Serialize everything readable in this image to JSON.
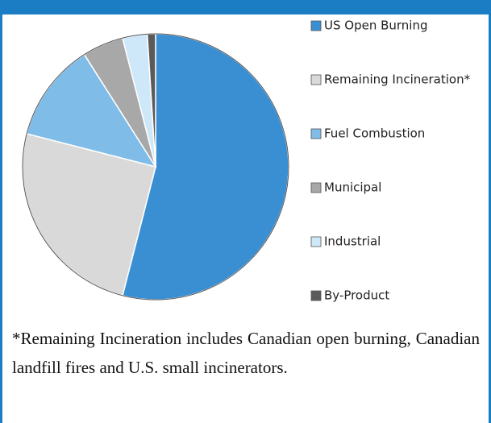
{
  "chart_data": {
    "type": "pie",
    "categories": [
      "US Open Burning",
      "Remaining Incineration*",
      "Fuel Combustion",
      "Municipal",
      "Industrial",
      "By-Product"
    ],
    "values": [
      54,
      25,
      12,
      5,
      3,
      1
    ],
    "colors": [
      "#3a8fd3",
      "#d9d9d9",
      "#7fbce8",
      "#a8a8a8",
      "#cfe8f9",
      "#5a5a5a"
    ],
    "legend": "right",
    "footnote": "*Remaining Incineration includes Canadian open burning, Canadian landfill fires and U.S. small incinerators."
  }
}
